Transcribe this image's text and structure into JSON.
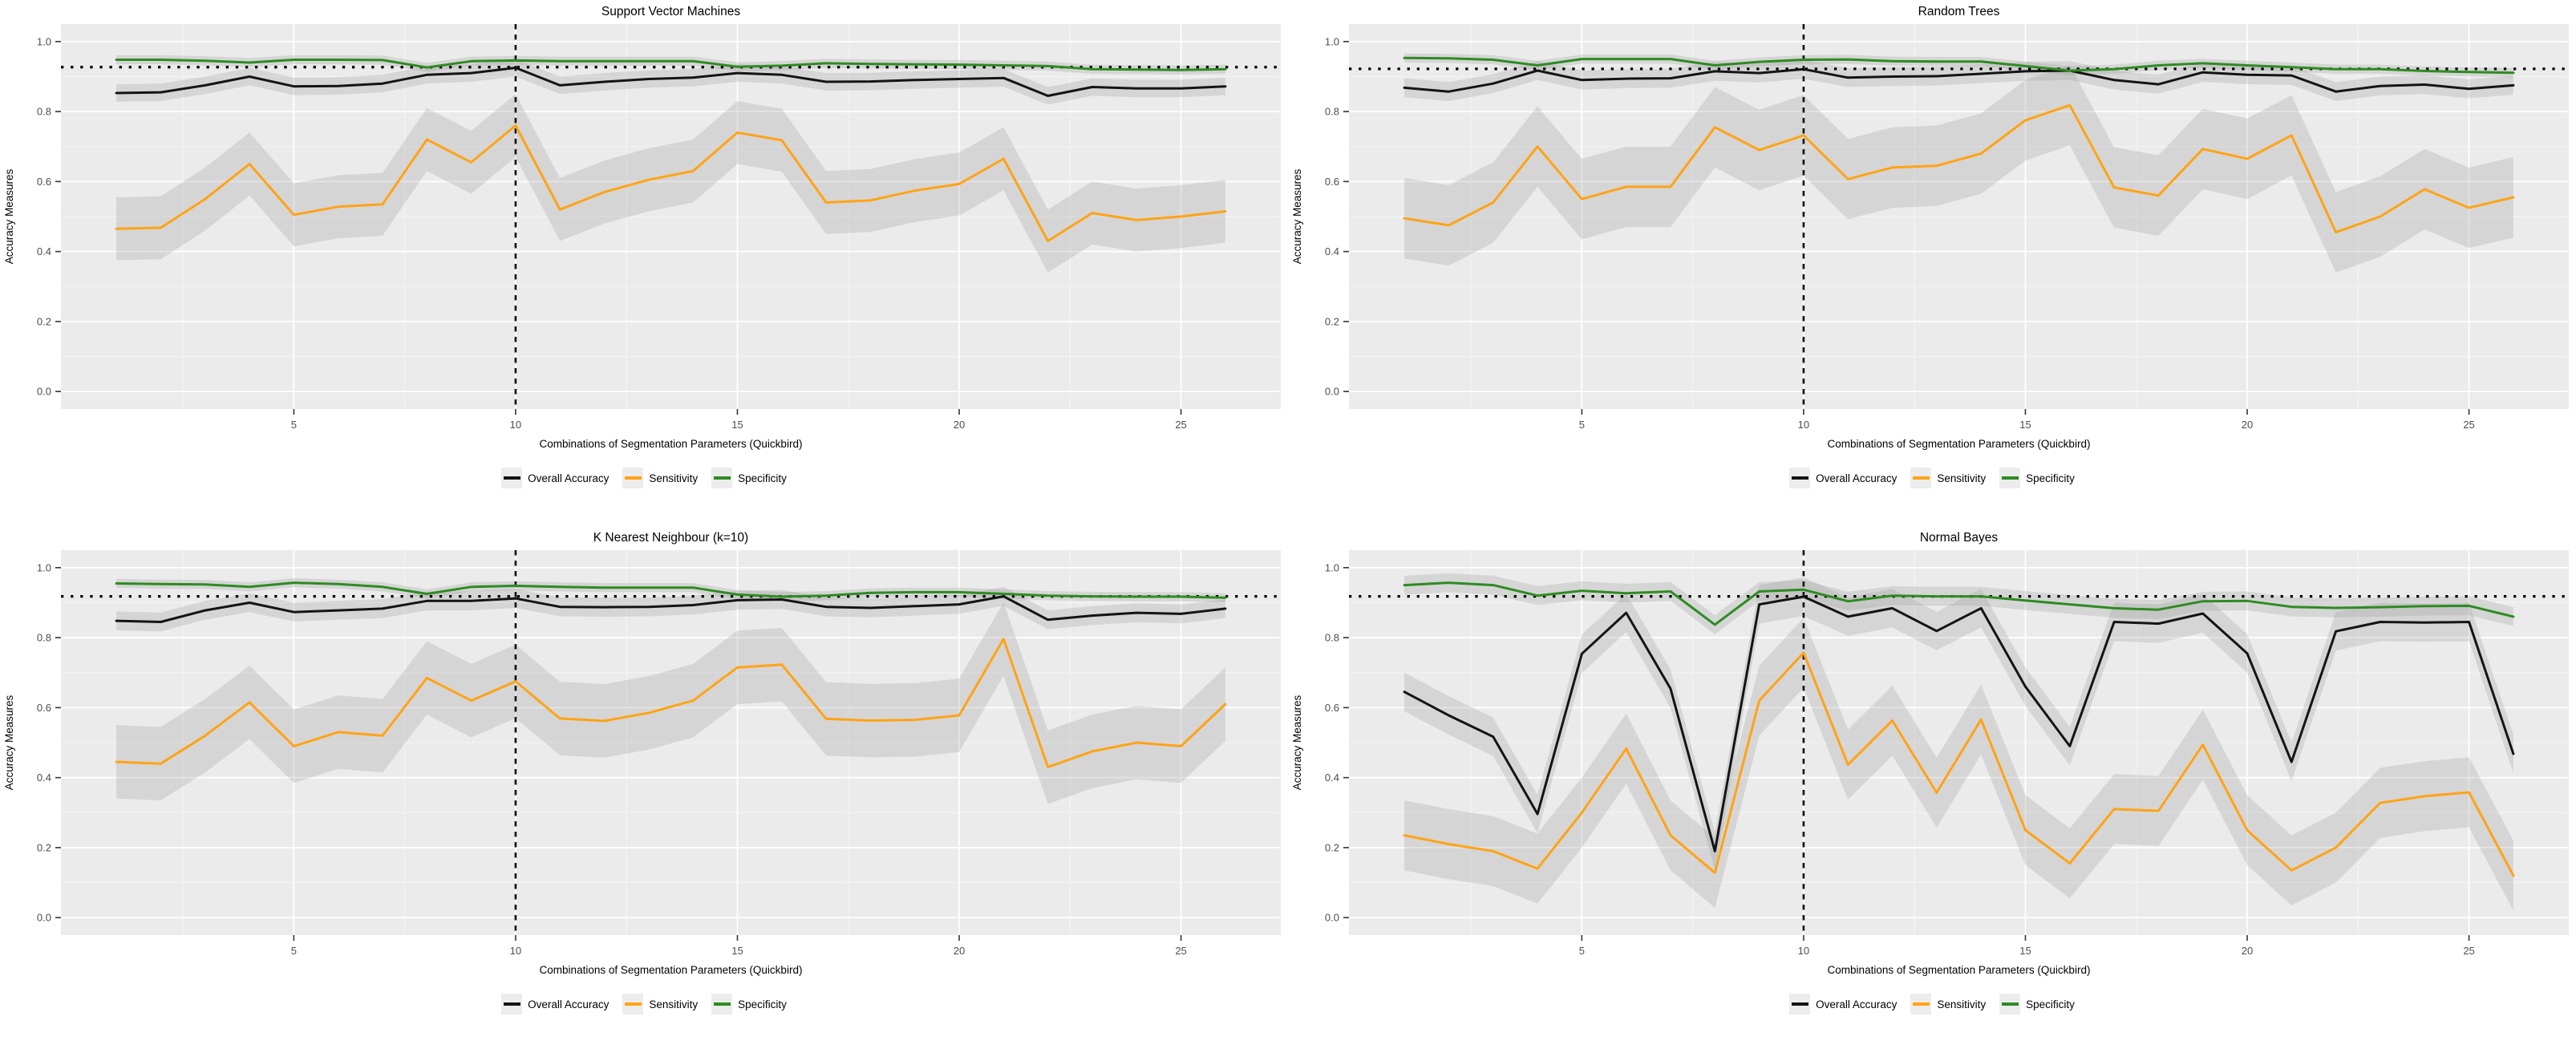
{
  "figure": {
    "background": "#ffffff",
    "plot_bg": "#ebebeb",
    "grid_major_color": "#ffffff",
    "grid_minor_color": "#f5f5f5",
    "ribbon_color": "#9e9e9e",
    "ribbon_opacity": 0.28,
    "tick_color": "#333333",
    "tick_label_color": "#4d4d4d",
    "axis_title_color": "#000000",
    "title_color": "#000000",
    "hline_style": "dotted",
    "vline_style": "dashed",
    "legend_key_bg": "#ececec"
  },
  "chart_data": [
    {
      "type": "line",
      "title": "Support Vector Machines",
      "xlabel": "Combinations of Segmentation Parameters (Quickbird)",
      "ylabel": "Accuracy Measures",
      "x": [
        1,
        2,
        3,
        4,
        5,
        6,
        7,
        8,
        9,
        10,
        11,
        12,
        13,
        14,
        15,
        16,
        17,
        18,
        19,
        20,
        21,
        22,
        23,
        24,
        25,
        26
      ],
      "x_ticks": [
        5,
        10,
        15,
        20,
        25
      ],
      "y_ticks": [
        "0.0",
        "0.2",
        "0.4",
        "0.6",
        "0.8",
        "1.0"
      ],
      "xlim": [
        -0.25,
        27.25
      ],
      "ylim": [
        -0.05,
        1.05
      ],
      "grid": true,
      "legend_position": "bottom",
      "hline_dotted": 0.927,
      "vline_dashed": 10,
      "series": [
        {
          "name": "Overall Accuracy",
          "color": "#141414",
          "band": 0.025,
          "values": [
            0.853,
            0.855,
            0.875,
            0.9,
            0.872,
            0.873,
            0.88,
            0.905,
            0.91,
            0.925,
            0.875,
            0.885,
            0.893,
            0.897,
            0.91,
            0.905,
            0.885,
            0.886,
            0.89,
            0.893,
            0.896,
            0.845,
            0.87,
            0.866,
            0.866,
            0.872
          ]
        },
        {
          "name": "Sensitivity",
          "color": "#ffa316",
          "band": 0.09,
          "values": [
            0.465,
            0.468,
            0.55,
            0.65,
            0.505,
            0.528,
            0.535,
            0.72,
            0.655,
            0.76,
            0.52,
            0.57,
            0.605,
            0.63,
            0.74,
            0.718,
            0.54,
            0.546,
            0.574,
            0.593,
            0.665,
            0.43,
            0.51,
            0.49,
            0.5,
            0.515
          ]
        },
        {
          "name": "Specificity",
          "color": "#2e8b22",
          "band": 0.013,
          "values": [
            0.948,
            0.948,
            0.945,
            0.94,
            0.948,
            0.948,
            0.947,
            0.926,
            0.944,
            0.946,
            0.944,
            0.944,
            0.944,
            0.944,
            0.928,
            0.931,
            0.938,
            0.936,
            0.935,
            0.934,
            0.932,
            0.93,
            0.921,
            0.92,
            0.919,
            0.921
          ]
        }
      ]
    },
    {
      "type": "line",
      "title": "Random Trees",
      "xlabel": "Combinations of Segmentation Parameters (Quickbird)",
      "ylabel": "Accuracy Measures",
      "x": [
        1,
        2,
        3,
        4,
        5,
        6,
        7,
        8,
        9,
        10,
        11,
        12,
        13,
        14,
        15,
        16,
        17,
        18,
        19,
        20,
        21,
        22,
        23,
        24,
        25,
        26
      ],
      "x_ticks": [
        5,
        10,
        15,
        20,
        25
      ],
      "y_ticks": [
        "0.0",
        "0.2",
        "0.4",
        "0.6",
        "0.8",
        "1.0"
      ],
      "xlim": [
        -0.25,
        27.25
      ],
      "ylim": [
        -0.05,
        1.05
      ],
      "grid": true,
      "legend_position": "bottom",
      "hline_dotted": 0.922,
      "vline_dashed": 10,
      "series": [
        {
          "name": "Overall Accuracy",
          "color": "#141414",
          "band": 0.027,
          "values": [
            0.868,
            0.857,
            0.88,
            0.917,
            0.89,
            0.894,
            0.895,
            0.915,
            0.91,
            0.921,
            0.897,
            0.9,
            0.901,
            0.908,
            0.915,
            0.917,
            0.89,
            0.878,
            0.912,
            0.905,
            0.903,
            0.857,
            0.873,
            0.877,
            0.865,
            0.875
          ]
        },
        {
          "name": "Sensitivity",
          "color": "#ffa316",
          "band": 0.115,
          "values": [
            0.495,
            0.475,
            0.54,
            0.7,
            0.55,
            0.585,
            0.585,
            0.755,
            0.69,
            0.732,
            0.607,
            0.64,
            0.645,
            0.68,
            0.775,
            0.818,
            0.583,
            0.56,
            0.693,
            0.665,
            0.732,
            0.455,
            0.5,
            0.578,
            0.525,
            0.555
          ]
        },
        {
          "name": "Specificity",
          "color": "#2e8b22",
          "band": 0.013,
          "values": [
            0.953,
            0.952,
            0.948,
            0.932,
            0.95,
            0.95,
            0.95,
            0.932,
            0.942,
            0.948,
            0.949,
            0.944,
            0.943,
            0.943,
            0.93,
            0.917,
            0.921,
            0.932,
            0.938,
            0.932,
            0.927,
            0.921,
            0.921,
            0.916,
            0.913,
            0.911
          ]
        }
      ]
    },
    {
      "type": "line",
      "title": "K Nearest Neighbour (k=10)",
      "xlabel": "Combinations of Segmentation Parameters (Quickbird)",
      "ylabel": "Accuracy Measures",
      "x": [
        1,
        2,
        3,
        4,
        5,
        6,
        7,
        8,
        9,
        10,
        11,
        12,
        13,
        14,
        15,
        16,
        17,
        18,
        19,
        20,
        21,
        22,
        23,
        24,
        25,
        26
      ],
      "x_ticks": [
        5,
        10,
        15,
        20,
        25
      ],
      "y_ticks": [
        "0.0",
        "0.2",
        "0.4",
        "0.6",
        "0.8",
        "1.0"
      ],
      "xlim": [
        -0.25,
        27.25
      ],
      "ylim": [
        -0.05,
        1.05
      ],
      "grid": true,
      "legend_position": "bottom",
      "hline_dotted": 0.918,
      "vline_dashed": 10,
      "series": [
        {
          "name": "Overall Accuracy",
          "color": "#141414",
          "band": 0.027,
          "values": [
            0.848,
            0.845,
            0.878,
            0.9,
            0.873,
            0.878,
            0.883,
            0.905,
            0.905,
            0.912,
            0.888,
            0.887,
            0.888,
            0.893,
            0.907,
            0.909,
            0.888,
            0.885,
            0.89,
            0.895,
            0.918,
            0.851,
            0.863,
            0.871,
            0.868,
            0.883
          ]
        },
        {
          "name": "Sensitivity",
          "color": "#ffa316",
          "band": 0.105,
          "values": [
            0.445,
            0.44,
            0.52,
            0.615,
            0.49,
            0.53,
            0.52,
            0.685,
            0.62,
            0.675,
            0.569,
            0.562,
            0.585,
            0.62,
            0.715,
            0.723,
            0.568,
            0.563,
            0.565,
            0.578,
            0.796,
            0.43,
            0.475,
            0.5,
            0.49,
            0.61
          ]
        },
        {
          "name": "Specificity",
          "color": "#2e8b22",
          "band": 0.013,
          "values": [
            0.955,
            0.953,
            0.952,
            0.945,
            0.957,
            0.953,
            0.945,
            0.925,
            0.945,
            0.948,
            0.945,
            0.943,
            0.943,
            0.943,
            0.923,
            0.917,
            0.92,
            0.928,
            0.93,
            0.93,
            0.925,
            0.92,
            0.918,
            0.917,
            0.917,
            0.914
          ]
        }
      ]
    },
    {
      "type": "line",
      "title": "Normal Bayes",
      "xlabel": "Combinations of Segmentation Parameters (Quickbird)",
      "ylabel": "Accuracy Measures",
      "x": [
        1,
        2,
        3,
        4,
        5,
        6,
        7,
        8,
        9,
        10,
        11,
        12,
        13,
        14,
        15,
        16,
        17,
        18,
        19,
        20,
        21,
        22,
        23,
        24,
        25,
        26
      ],
      "x_ticks": [
        5,
        10,
        15,
        20,
        25
      ],
      "y_ticks": [
        "0.0",
        "0.2",
        "0.4",
        "0.6",
        "0.8",
        "1.0"
      ],
      "xlim": [
        -0.25,
        27.25
      ],
      "ylim": [
        -0.05,
        1.05
      ],
      "grid": true,
      "legend_position": "bottom",
      "hline_dotted": 0.918,
      "vline_dashed": 10,
      "series": [
        {
          "name": "Overall Accuracy",
          "color": "#141414",
          "band": 0.055,
          "values": [
            0.645,
            0.578,
            0.517,
            0.296,
            0.754,
            0.871,
            0.654,
            0.19,
            0.895,
            0.917,
            0.86,
            0.884,
            0.819,
            0.884,
            0.66,
            0.49,
            0.845,
            0.84,
            0.869,
            0.755,
            0.445,
            0.818,
            0.845,
            0.843,
            0.845,
            0.468
          ]
        },
        {
          "name": "Sensitivity",
          "color": "#ffa316",
          "band": 0.1,
          "values": [
            0.235,
            0.21,
            0.19,
            0.14,
            0.3,
            0.483,
            0.235,
            0.128,
            0.62,
            0.757,
            0.437,
            0.563,
            0.357,
            0.566,
            0.25,
            0.155,
            0.31,
            0.305,
            0.494,
            0.25,
            0.135,
            0.2,
            0.328,
            0.347,
            0.358,
            0.12
          ]
        },
        {
          "name": "Specificity",
          "color": "#2e8b22",
          "band": 0.027,
          "values": [
            0.95,
            0.957,
            0.95,
            0.92,
            0.934,
            0.927,
            0.932,
            0.837,
            0.932,
            0.937,
            0.904,
            0.92,
            0.918,
            0.918,
            0.906,
            0.895,
            0.884,
            0.88,
            0.904,
            0.905,
            0.888,
            0.885,
            0.887,
            0.89,
            0.891,
            0.86
          ]
        }
      ]
    }
  ]
}
